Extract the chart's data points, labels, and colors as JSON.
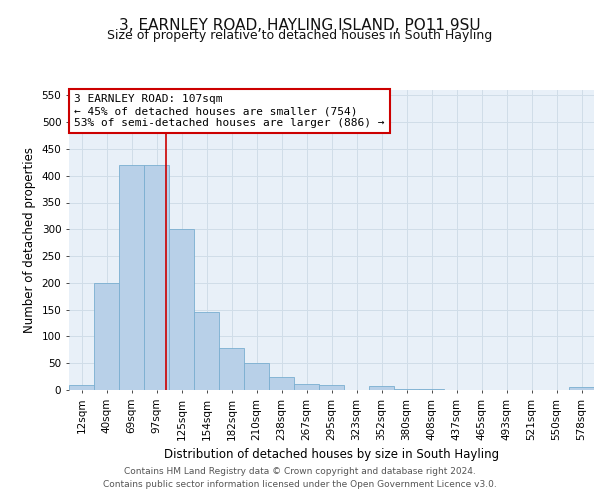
{
  "title": "3, EARNLEY ROAD, HAYLING ISLAND, PO11 9SU",
  "subtitle": "Size of property relative to detached houses in South Hayling",
  "xlabel": "Distribution of detached houses by size in South Hayling",
  "ylabel": "Number of detached properties",
  "bar_labels": [
    "12sqm",
    "40sqm",
    "69sqm",
    "97sqm",
    "125sqm",
    "154sqm",
    "182sqm",
    "210sqm",
    "238sqm",
    "267sqm",
    "295sqm",
    "323sqm",
    "352sqm",
    "380sqm",
    "408sqm",
    "437sqm",
    "465sqm",
    "493sqm",
    "521sqm",
    "550sqm",
    "578sqm"
  ],
  "bar_values": [
    10,
    200,
    420,
    420,
    300,
    145,
    78,
    50,
    25,
    12,
    10,
    0,
    7,
    2,
    2,
    0,
    0,
    0,
    0,
    0,
    5
  ],
  "bar_color": "#b8d0e8",
  "bar_edge_color": "#7aaed0",
  "annotation_text": "3 EARNLEY ROAD: 107sqm\n← 45% of detached houses are smaller (754)\n53% of semi-detached houses are larger (886) →",
  "annotation_box_color": "#ffffff",
  "annotation_box_edge_color": "#cc0000",
  "grid_color": "#d0dde8",
  "background_color": "#e8f0f8",
  "ylim": [
    0,
    560
  ],
  "yticks": [
    0,
    50,
    100,
    150,
    200,
    250,
    300,
    350,
    400,
    450,
    500,
    550
  ],
  "footer_line1": "Contains HM Land Registry data © Crown copyright and database right 2024.",
  "footer_line2": "Contains public sector information licensed under the Open Government Licence v3.0.",
  "title_fontsize": 11,
  "subtitle_fontsize": 9,
  "xlabel_fontsize": 8.5,
  "ylabel_fontsize": 8.5,
  "tick_fontsize": 7.5,
  "annotation_fontsize": 8,
  "footer_fontsize": 6.5,
  "red_line_x": 3.38
}
